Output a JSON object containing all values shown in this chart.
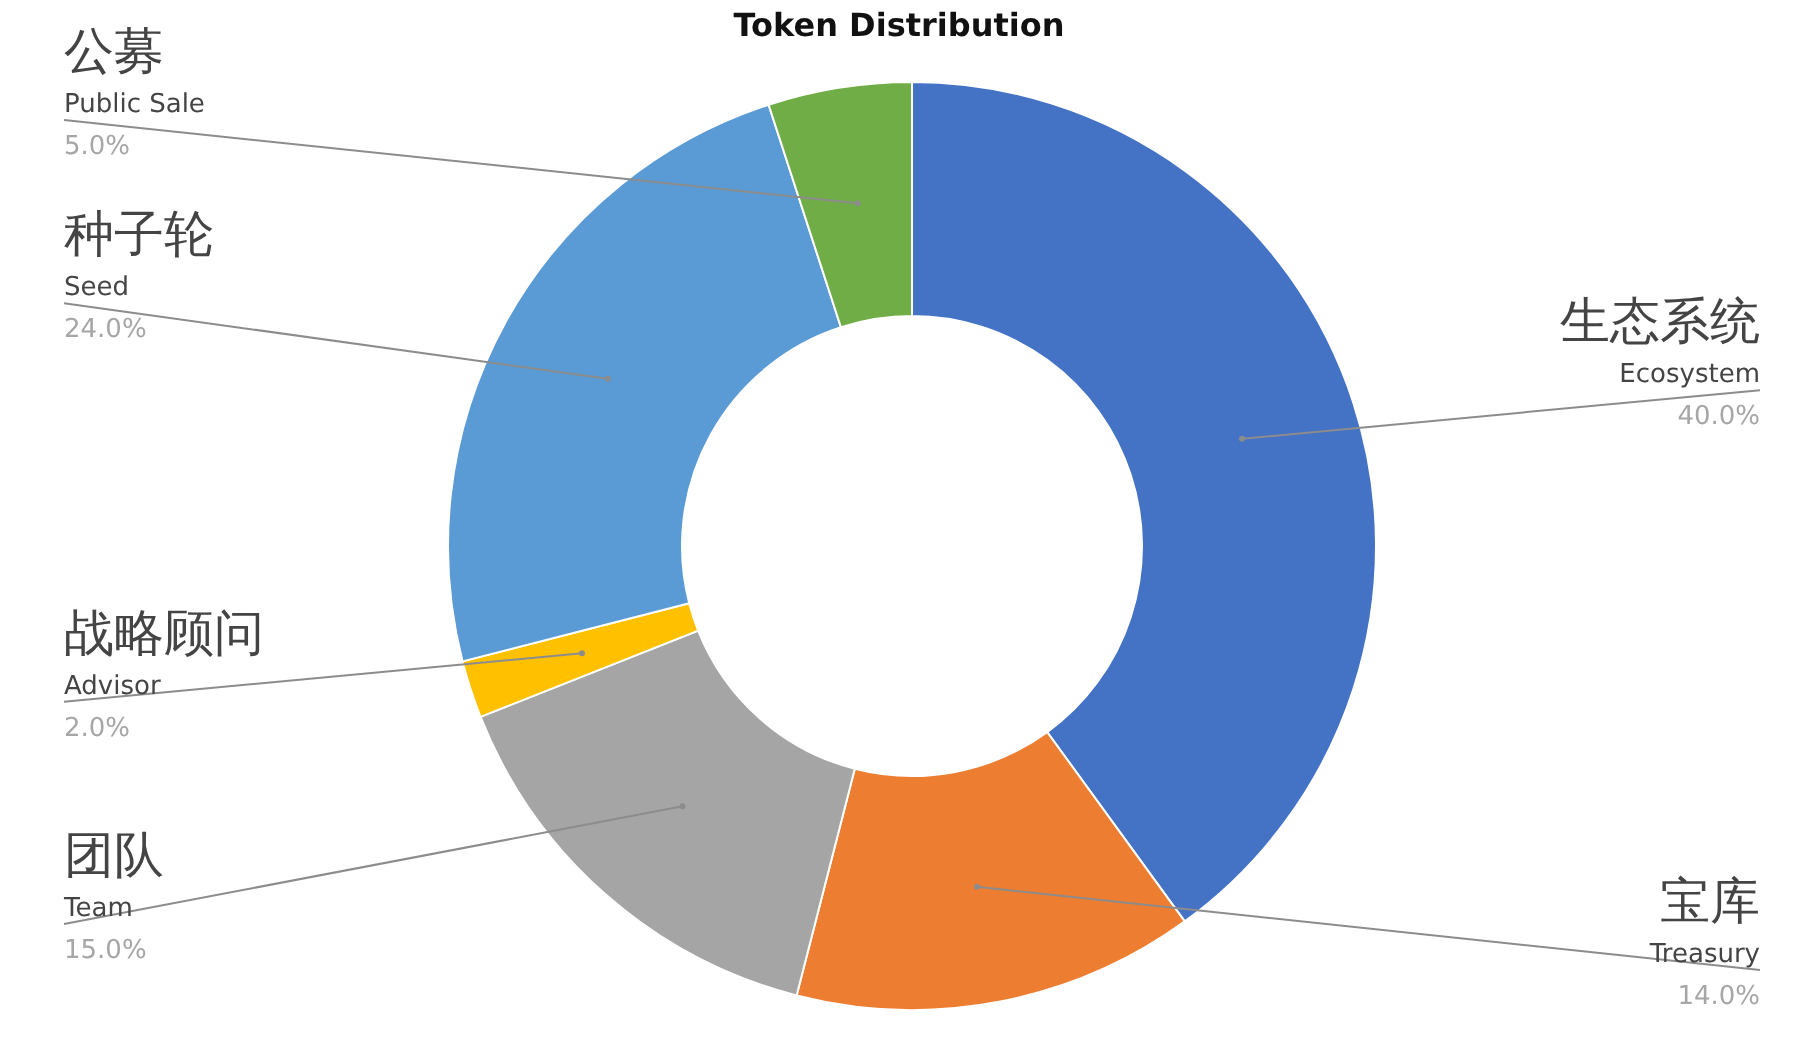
{
  "chart_data": {
    "type": "donut",
    "title": "Token Distribution",
    "categories": [
      "生态系统\nEcosystem",
      "宝库\nTreasury",
      "团队\nTeam",
      "战略顾问\nAdvisor",
      "种子轮\nSeed",
      "公募\nPublic Sale"
    ],
    "values": [
      40,
      14,
      15,
      2,
      24,
      5
    ],
    "colors": [
      "#4472c4",
      "#ed7d31",
      "#a5a5a5",
      "#ffc000",
      "#5b9bd5",
      "#70ad47"
    ],
    "value_labels": [
      "40.0%",
      "14.0%",
      "15.0%",
      "2.0%",
      "24.0%",
      "5.0%"
    ],
    "legend": false
  }
}
